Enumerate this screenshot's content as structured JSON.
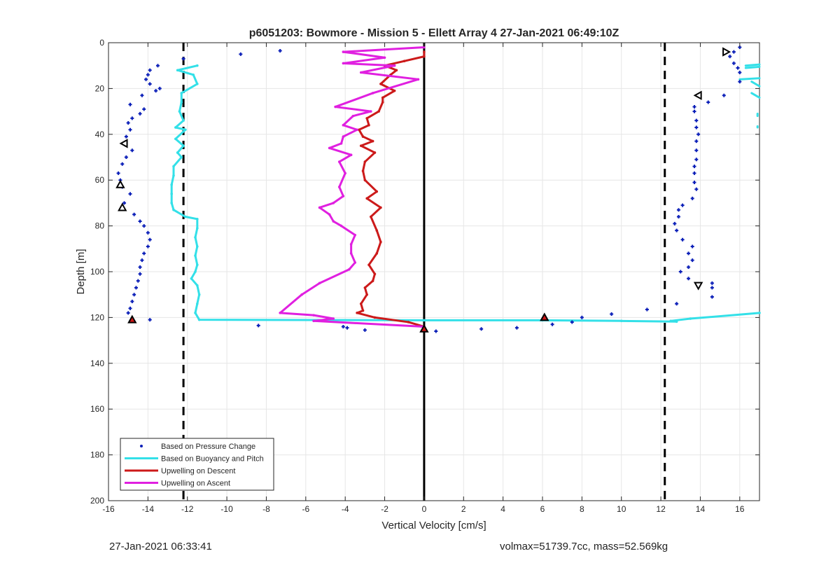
{
  "chart_data": {
    "type": "line",
    "title": "p6051203: Bowmore - Mission 5 - Ellett Array 4 27-Jan-2021 06:49:10Z",
    "xlabel": "Vertical Velocity [cm/s]",
    "ylabel": "Depth [m]",
    "xlim": [
      -16,
      17
    ],
    "ylim": [
      0,
      200
    ],
    "y_reversed": true,
    "x_ticks": [
      -16,
      -14,
      -12,
      -10,
      -8,
      -6,
      -4,
      -2,
      0,
      2,
      4,
      6,
      8,
      10,
      12,
      14,
      16
    ],
    "y_ticks": [
      0,
      20,
      40,
      60,
      80,
      100,
      120,
      140,
      160,
      180,
      200
    ],
    "grid": true,
    "legend_position": "bottom-left",
    "reference_lines": [
      {
        "x": -12.2,
        "style": "dashed",
        "color": "#000000"
      },
      {
        "x": 12.2,
        "style": "dashed",
        "color": "#000000"
      },
      {
        "x": 0,
        "style": "solid",
        "color": "#000000"
      }
    ],
    "series": [
      {
        "name": "Based on Pressure Change",
        "kind": "scatter",
        "color": "#0b1fb8",
        "points": [
          [
            -9.3,
            5
          ],
          [
            -7.3,
            3.5
          ],
          [
            -12.2,
            7
          ],
          [
            -13.5,
            10
          ],
          [
            -13.9,
            12
          ],
          [
            -14.0,
            14
          ],
          [
            -14.1,
            16
          ],
          [
            -13.9,
            18
          ],
          [
            -13.4,
            20
          ],
          [
            -13.6,
            21
          ],
          [
            -14.3,
            23
          ],
          [
            -14.9,
            27
          ],
          [
            -14.2,
            29
          ],
          [
            -14.4,
            31
          ],
          [
            -14.8,
            33
          ],
          [
            -15.0,
            35
          ],
          [
            -14.9,
            38
          ],
          [
            -15.1,
            41
          ],
          [
            -15.2,
            44
          ],
          [
            -14.8,
            47
          ],
          [
            -15.1,
            50
          ],
          [
            -15.3,
            53
          ],
          [
            -15.5,
            57
          ],
          [
            -15.4,
            60
          ],
          [
            -15.3,
            63
          ],
          [
            -14.9,
            66
          ],
          [
            -15.2,
            70
          ],
          [
            -14.7,
            75
          ],
          [
            -14.4,
            78
          ],
          [
            -14.2,
            80
          ],
          [
            -14.0,
            83
          ],
          [
            -13.9,
            86
          ],
          [
            -14.0,
            89
          ],
          [
            -14.2,
            92
          ],
          [
            -14.3,
            95
          ],
          [
            -14.4,
            98
          ],
          [
            -14.4,
            101
          ],
          [
            -14.5,
            104
          ],
          [
            -14.6,
            107
          ],
          [
            -14.7,
            110
          ],
          [
            -14.8,
            113
          ],
          [
            -14.9,
            116
          ],
          [
            -15.0,
            118
          ],
          [
            -13.9,
            121
          ],
          [
            -8.4,
            123.5
          ],
          [
            -4.1,
            124
          ],
          [
            -3.9,
            124.5
          ],
          [
            -3.0,
            125.5
          ],
          [
            0.6,
            126
          ],
          [
            2.9,
            125
          ],
          [
            4.7,
            124.5
          ],
          [
            6.5,
            123
          ],
          [
            7.5,
            122
          ],
          [
            8.0,
            120
          ],
          [
            9.5,
            118.5
          ],
          [
            11.3,
            116.5
          ],
          [
            12.8,
            114
          ],
          [
            14.6,
            111
          ],
          [
            14.6,
            107
          ],
          [
            14.6,
            105
          ],
          [
            13.4,
            103
          ],
          [
            13.0,
            100
          ],
          [
            13.4,
            98
          ],
          [
            13.6,
            95
          ],
          [
            13.4,
            92
          ],
          [
            13.6,
            89
          ],
          [
            13.1,
            86
          ],
          [
            12.8,
            82
          ],
          [
            12.7,
            79
          ],
          [
            12.9,
            76
          ],
          [
            12.9,
            73
          ],
          [
            13.1,
            71
          ],
          [
            13.6,
            68
          ],
          [
            13.8,
            64
          ],
          [
            13.7,
            61
          ],
          [
            13.7,
            57
          ],
          [
            13.7,
            54
          ],
          [
            13.8,
            51
          ],
          [
            13.8,
            47
          ],
          [
            13.8,
            43
          ],
          [
            13.9,
            40
          ],
          [
            13.8,
            37
          ],
          [
            13.8,
            34
          ],
          [
            13.7,
            30
          ],
          [
            13.7,
            28
          ],
          [
            14.4,
            26
          ],
          [
            15.2,
            23
          ],
          [
            16.0,
            17
          ],
          [
            16.0,
            13
          ],
          [
            15.9,
            11
          ],
          [
            15.7,
            9
          ],
          [
            15.5,
            6
          ],
          [
            15.7,
            4
          ],
          [
            16.0,
            2
          ]
        ]
      },
      {
        "name": "Based on Buoyancy and Pitch",
        "kind": "line",
        "color": "#33e0e8",
        "points": [
          [
            -11.5,
            10
          ],
          [
            -12.5,
            12
          ],
          [
            -11.7,
            14
          ],
          [
            -11.5,
            18
          ],
          [
            -12.3,
            22
          ],
          [
            -12.3,
            26
          ],
          [
            -12.4,
            30
          ],
          [
            -12.2,
            34
          ],
          [
            -12.6,
            37
          ],
          [
            -12.1,
            38
          ],
          [
            -12.6,
            42
          ],
          [
            -12.2,
            45
          ],
          [
            -12.5,
            48
          ],
          [
            -12.3,
            50
          ],
          [
            -12.7,
            54
          ],
          [
            -12.7,
            58
          ],
          [
            -12.8,
            62
          ],
          [
            -12.8,
            66
          ],
          [
            -12.8,
            70
          ],
          [
            -12.7,
            73
          ],
          [
            -12.1,
            76
          ],
          [
            -11.5,
            77
          ],
          [
            -11.5,
            81
          ],
          [
            -11.6,
            85
          ],
          [
            -11.5,
            89
          ],
          [
            -11.6,
            93
          ],
          [
            -11.5,
            97
          ],
          [
            -11.6,
            100
          ],
          [
            -11.8,
            103
          ],
          [
            -11.5,
            106
          ],
          [
            -11.4,
            110
          ],
          [
            -11.5,
            114
          ],
          [
            -11.6,
            118
          ],
          [
            -11.4,
            121
          ],
          [
            0,
            121.2
          ],
          [
            6,
            121.2
          ],
          [
            10,
            121.5
          ],
          [
            12.8,
            121.8
          ],
          [
            12.5,
            121.5
          ],
          [
            13.5,
            120.5
          ],
          [
            17.0,
            118
          ]
        ]
      },
      {
        "name": "Based on Buoyancy and Pitch (upper right)",
        "kind": "line-fragments",
        "color": "#33e0e8",
        "points": [
          [
            16.3,
            10
          ],
          [
            17.0,
            9.5
          ],
          [
            16.3,
            11
          ],
          [
            17.0,
            10.5
          ],
          [
            16.0,
            16
          ],
          [
            17.0,
            15.5
          ],
          [
            16.6,
            17
          ],
          [
            17.0,
            19
          ],
          [
            16.6,
            22
          ],
          [
            17.0,
            24
          ],
          [
            16.9,
            31
          ],
          [
            16.9,
            32
          ],
          [
            16.9,
            36.5
          ],
          [
            16.9,
            37
          ]
        ]
      },
      {
        "name": "Upwelling on Descent",
        "kind": "line",
        "color": "#cc1a1a",
        "points": [
          [
            0,
            4
          ],
          [
            0,
            6
          ],
          [
            -1.0,
            8
          ],
          [
            -2.0,
            10
          ],
          [
            -1.4,
            12
          ],
          [
            -1.7,
            14
          ],
          [
            -2.2,
            18
          ],
          [
            -1.5,
            21
          ],
          [
            -2.1,
            24
          ],
          [
            -2.1,
            26
          ],
          [
            -2.3,
            30
          ],
          [
            -2.9,
            33
          ],
          [
            -2.8,
            36
          ],
          [
            -3.3,
            38
          ],
          [
            -3.1,
            41
          ],
          [
            -2.6,
            43
          ],
          [
            -3.2,
            45
          ],
          [
            -2.5,
            48
          ],
          [
            -3.0,
            52
          ],
          [
            -3.1,
            56
          ],
          [
            -3.0,
            60
          ],
          [
            -2.4,
            65
          ],
          [
            -2.9,
            68
          ],
          [
            -2.2,
            72
          ],
          [
            -2.7,
            76
          ],
          [
            -2.4,
            82
          ],
          [
            -2.2,
            87
          ],
          [
            -2.4,
            92
          ],
          [
            -2.8,
            97
          ],
          [
            -2.5,
            101
          ],
          [
            -2.6,
            104
          ],
          [
            -3.0,
            107
          ],
          [
            -2.9,
            110
          ],
          [
            -3.2,
            114
          ],
          [
            -3.1,
            117
          ],
          [
            -3.4,
            118
          ],
          [
            -2.5,
            120
          ],
          [
            -0.8,
            122
          ],
          [
            0,
            124
          ]
        ]
      },
      {
        "name": "Upwelling on Ascent",
        "kind": "line",
        "color": "#e020e0",
        "points": [
          [
            0,
            2
          ],
          [
            -4.1,
            4
          ],
          [
            -2.0,
            6.5
          ],
          [
            -4.1,
            9
          ],
          [
            -1.5,
            10
          ],
          [
            -3.2,
            13
          ],
          [
            -0.3,
            16
          ],
          [
            -2.6,
            22
          ],
          [
            -4.5,
            28
          ],
          [
            -2.7,
            30
          ],
          [
            -3.6,
            32
          ],
          [
            -4.1,
            36
          ],
          [
            -3.4,
            38
          ],
          [
            -4.1,
            41
          ],
          [
            -4.2,
            44
          ],
          [
            -4.8,
            46
          ],
          [
            -3.7,
            49
          ],
          [
            -4.3,
            52
          ],
          [
            -4.0,
            57
          ],
          [
            -4.3,
            63
          ],
          [
            -4.1,
            67
          ],
          [
            -4.6,
            70
          ],
          [
            -5.3,
            72
          ],
          [
            -4.8,
            75
          ],
          [
            -4.6,
            78
          ],
          [
            -4.2,
            80
          ],
          [
            -3.5,
            84
          ],
          [
            -3.7,
            88
          ],
          [
            -3.7,
            92
          ],
          [
            -3.5,
            96
          ],
          [
            -3.8,
            99
          ],
          [
            -5.3,
            105
          ],
          [
            -6.2,
            110
          ],
          [
            -7.3,
            118
          ],
          [
            -5.6,
            119
          ],
          [
            -4.6,
            120.5
          ],
          [
            -5.6,
            121.5
          ],
          [
            0,
            124
          ]
        ]
      },
      {
        "name": "Triangle markers",
        "kind": "markers",
        "points": [
          {
            "x": -15.2,
            "y": 44,
            "shape": "triangle-left",
            "fill": "#ffffff"
          },
          {
            "x": -15.4,
            "y": 62,
            "shape": "triangle-up",
            "fill": "#ffffff"
          },
          {
            "x": -15.3,
            "y": 72,
            "shape": "triangle-up",
            "fill": "#ffffff"
          },
          {
            "x": -14.8,
            "y": 121,
            "shape": "triangle-up",
            "fill": "#d01818"
          },
          {
            "x": 0,
            "y": 125,
            "shape": "triangle-up",
            "fill": "#d01818"
          },
          {
            "x": 6.1,
            "y": 120,
            "shape": "triangle-up",
            "fill": "#d01818"
          },
          {
            "x": 13.9,
            "y": 106,
            "shape": "triangle-down",
            "fill": "#ffffff"
          },
          {
            "x": 13.9,
            "y": 23,
            "shape": "triangle-left",
            "fill": "#ffffff"
          },
          {
            "x": 15.3,
            "y": 4,
            "shape": "triangle-right",
            "fill": "#ffffff"
          }
        ]
      }
    ],
    "legend": [
      {
        "label": "Based on Pressure Change",
        "kind": "marker",
        "color": "#0b1fb8"
      },
      {
        "label": "Based on Buoyancy and Pitch",
        "kind": "line",
        "color": "#33e0e8"
      },
      {
        "label": "Upwelling on Descent",
        "kind": "line",
        "color": "#cc1a1a"
      },
      {
        "label": "Upwelling on Ascent",
        "kind": "line",
        "color": "#e020e0"
      }
    ]
  },
  "footer": {
    "timestamp": "27-Jan-2021 06:33:41",
    "stats": "volmax=51739.7cc, mass=52.569kg"
  }
}
